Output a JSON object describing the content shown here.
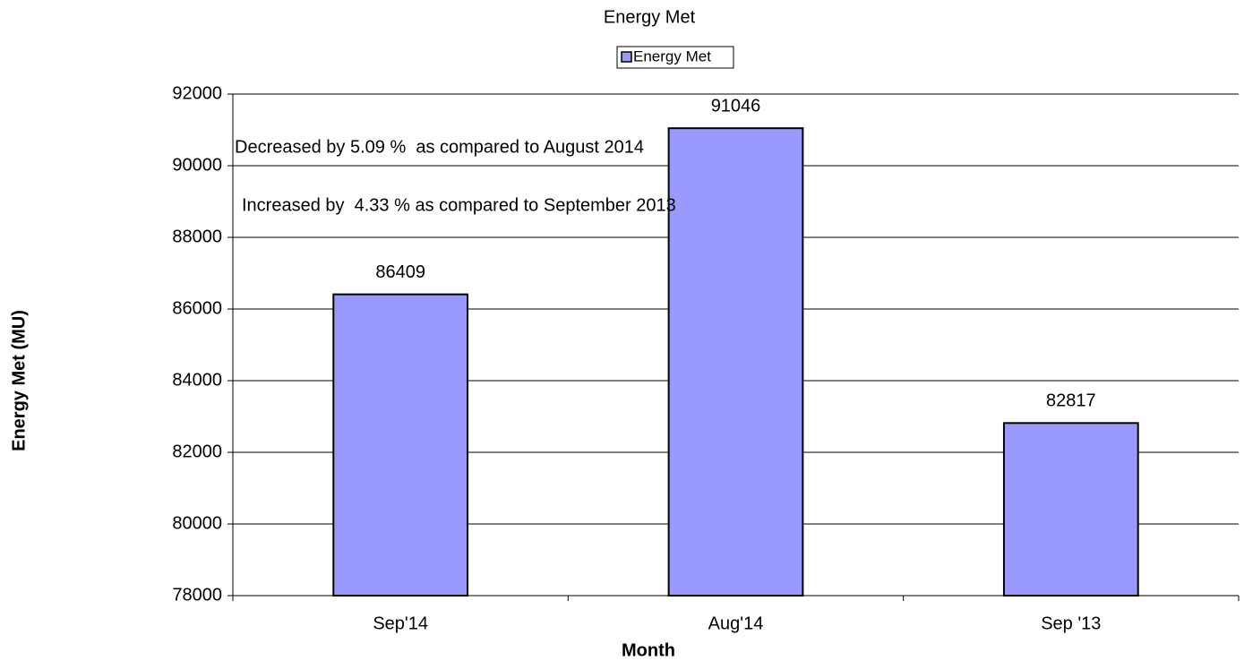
{
  "chart_data": {
    "type": "bar",
    "title": "Energy Met",
    "categories": [
      "Sep'14",
      "Aug'14",
      "Sep '13"
    ],
    "series": [
      {
        "name": "Energy Met",
        "color": "#9999ff",
        "values": [
          86409,
          91046,
          82817
        ]
      }
    ],
    "x_label": "Month",
    "y_label": "Energy Met (MU)",
    "annotations": [
      "Decreased by 5.09 %  as compared to August 2014",
      "Increased by  4.33 % as compared to September 2013"
    ],
    "ylim": [
      78000,
      92000
    ],
    "yticks": [
      78000,
      80000,
      82000,
      84000,
      86000,
      88000,
      90000,
      92000
    ],
    "grid": true,
    "legend": "top"
  }
}
